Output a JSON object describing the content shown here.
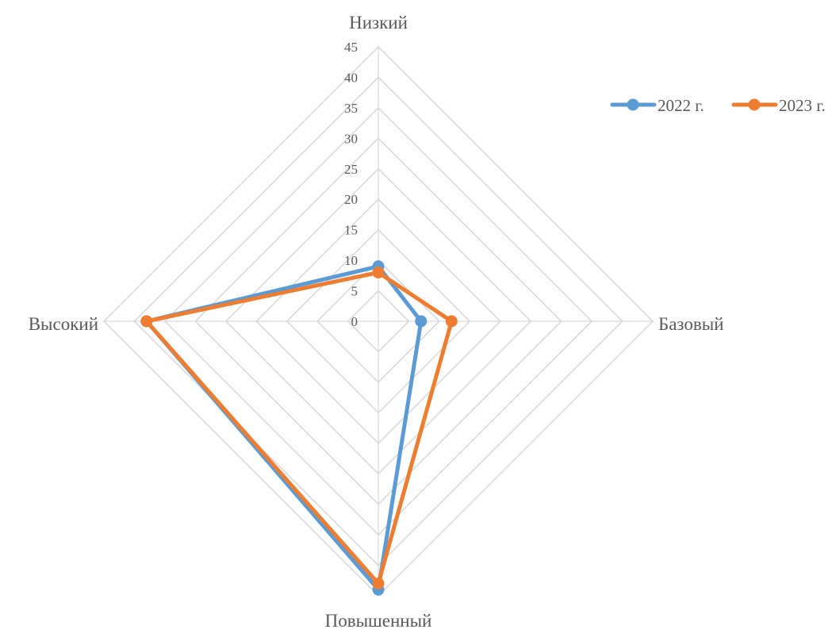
{
  "chart_data": {
    "type": "radar",
    "title": "",
    "categories": [
      "Низкий",
      "Базовый",
      "Повышенный",
      "Высокий"
    ],
    "axis": {
      "range": [
        0,
        45
      ],
      "major_unit": 5,
      "tick_labels": [
        "0",
        "5",
        "10",
        "15",
        "20",
        "25",
        "30",
        "35",
        "40",
        "45"
      ]
    },
    "grid": true,
    "legend": {
      "position": "top-right"
    },
    "series": [
      {
        "name": "2022 г.",
        "color": "#5b9bd5",
        "values": [
          9,
          7,
          44,
          38
        ]
      },
      {
        "name": "2023 г.",
        "color": "#ed7d31",
        "values": [
          8,
          12,
          43,
          38
        ]
      }
    ]
  }
}
